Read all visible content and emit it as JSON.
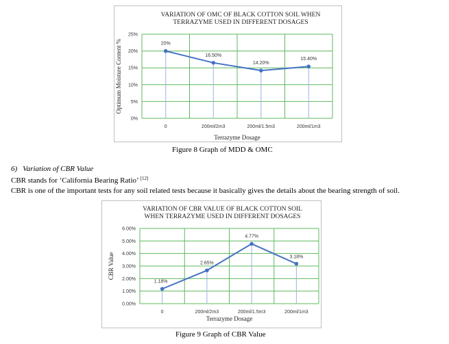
{
  "figure8": {
    "caption": "Figure 8 Graph of MDD & OMC",
    "chart_data": {
      "type": "line",
      "title": "VARIATION OF OMC OF BLACK COTTON SOIL WHEN TERRAZYME USED IN DIFFERENT DOSAGES",
      "title_lines": [
        "VARIATION OF OMC OF BLACK COTTON SOIL WHEN",
        "TERRAZYME USED IN DIFFERENT DOSAGES"
      ],
      "xlabel": "Terrazyme Dosage",
      "ylabel": "Optimum Moisture Content %",
      "categories": [
        "0",
        "200ml/2m3",
        "200ml/1.5m3",
        "200ml/1m3"
      ],
      "values": [
        20,
        16.5,
        14.2,
        15.4
      ],
      "data_labels": [
        "20%",
        "16.50%",
        "14.20%",
        "15.40%"
      ],
      "yticks": [
        "0%",
        "5%",
        "10%",
        "15%",
        "20%",
        "25%"
      ],
      "ylim": [
        0,
        25
      ],
      "grid": true,
      "line_color": "#4472c4",
      "grid_color": "#5cb85c"
    }
  },
  "section": {
    "number": "6)",
    "heading": "Variation of CBR Value",
    "definition": "CBR stands for ‘California Bearing Ratio’",
    "citation": "[12]",
    "importance": "CBR is one of the important tests for any soil related tests because it basically gives the details about the bearing strength of soil."
  },
  "figure9": {
    "caption": "Figure 9 Graph of CBR Value",
    "chart_data": {
      "type": "line",
      "title": "VARIATION OF CBR VALUE OF BLACK COTTON SOIL WHEN TERRAZYME USED IN DIFFERENT DOSAGES",
      "title_lines": [
        "VARIATION OF CBR VALUE OF BLACK COTTON SOIL",
        "WHEN TERRAZYME USED IN DIFFERENT DOSAGES"
      ],
      "xlabel": "Terrazyme Dosage",
      "ylabel": "CBR Value",
      "categories": [
        "0",
        "200ml/2m3",
        "200ml/1.5m3",
        "200ml/1m3"
      ],
      "values": [
        1.18,
        2.65,
        4.77,
        3.18
      ],
      "data_labels": [
        "1.18%",
        "2.65%",
        "4.77%",
        "3.18%"
      ],
      "yticks": [
        "0.00%",
        "1.00%",
        "2.00%",
        "3.00%",
        "4.00%",
        "5.00%",
        "6.00%"
      ],
      "ylim": [
        0,
        6
      ],
      "grid": true,
      "line_color": "#4472c4",
      "grid_color": "#5cb85c"
    }
  }
}
